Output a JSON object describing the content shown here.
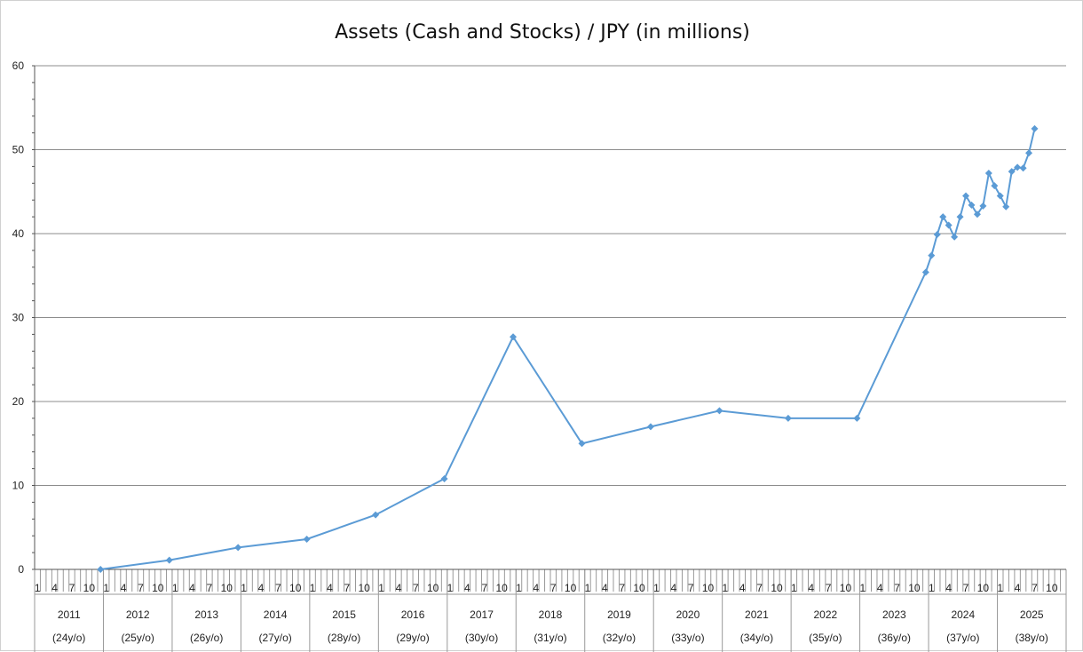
{
  "chart_data": {
    "type": "line",
    "title": "Assets (Cash and Stocks) / JPY (in millions)",
    "ylim": [
      0,
      60
    ],
    "yticks": [
      0,
      10,
      20,
      30,
      40,
      50,
      60
    ],
    "grid": true,
    "color": "#5b9bd5",
    "month_ticks": [
      "1",
      "4",
      "7",
      "10"
    ],
    "years": [
      {
        "year": "2011",
        "age": "(24y/o)"
      },
      {
        "year": "2012",
        "age": "(25y/o)"
      },
      {
        "year": "2013",
        "age": "(26y/o)"
      },
      {
        "year": "2014",
        "age": "(27y/o)"
      },
      {
        "year": "2015",
        "age": "(28y/o)"
      },
      {
        "year": "2016",
        "age": "(29y/o)"
      },
      {
        "year": "2017",
        "age": "(30y/o)"
      },
      {
        "year": "2018",
        "age": "(31y/o)"
      },
      {
        "year": "2019",
        "age": "(32y/o)"
      },
      {
        "year": "2020",
        "age": "(33y/o)"
      },
      {
        "year": "2021",
        "age": "(34y/o)"
      },
      {
        "year": "2022",
        "age": "(35y/o)"
      },
      {
        "year": "2023",
        "age": "(36y/o)"
      },
      {
        "year": "2024",
        "age": "(37y/o)"
      },
      {
        "year": "2025",
        "age": "(38y/o)"
      }
    ],
    "points": [
      {
        "x": "2011-12",
        "y": 0
      },
      {
        "x": "2012-12",
        "y": 1.1
      },
      {
        "x": "2013-12",
        "y": 2.6
      },
      {
        "x": "2014-12",
        "y": 3.6
      },
      {
        "x": "2015-12",
        "y": 6.5
      },
      {
        "x": "2016-12",
        "y": 10.8
      },
      {
        "x": "2017-12",
        "y": 27.7
      },
      {
        "x": "2018-12",
        "y": 15.0
      },
      {
        "x": "2019-12",
        "y": 17.0
      },
      {
        "x": "2020-12",
        "y": 18.9
      },
      {
        "x": "2021-12",
        "y": 18.0
      },
      {
        "x": "2022-12",
        "y": 18.0
      },
      {
        "x": "2023-12",
        "y": 35.4
      },
      {
        "x": "2024-01",
        "y": 37.4
      },
      {
        "x": "2024-02",
        "y": 39.9
      },
      {
        "x": "2024-03",
        "y": 42.0
      },
      {
        "x": "2024-04",
        "y": 41.0
      },
      {
        "x": "2024-05",
        "y": 39.6
      },
      {
        "x": "2024-06",
        "y": 42.0
      },
      {
        "x": "2024-07",
        "y": 44.5
      },
      {
        "x": "2024-08",
        "y": 43.4
      },
      {
        "x": "2024-09",
        "y": 42.3
      },
      {
        "x": "2024-10",
        "y": 43.3
      },
      {
        "x": "2024-11",
        "y": 47.2
      },
      {
        "x": "2024-12",
        "y": 45.7
      },
      {
        "x": "2025-01",
        "y": 44.5
      },
      {
        "x": "2025-02",
        "y": 43.2
      },
      {
        "x": "2025-03",
        "y": 47.4
      },
      {
        "x": "2025-04",
        "y": 47.9
      },
      {
        "x": "2025-05",
        "y": 47.8
      },
      {
        "x": "2025-06",
        "y": 49.6
      },
      {
        "x": "2025-07",
        "y": 52.5
      }
    ]
  }
}
